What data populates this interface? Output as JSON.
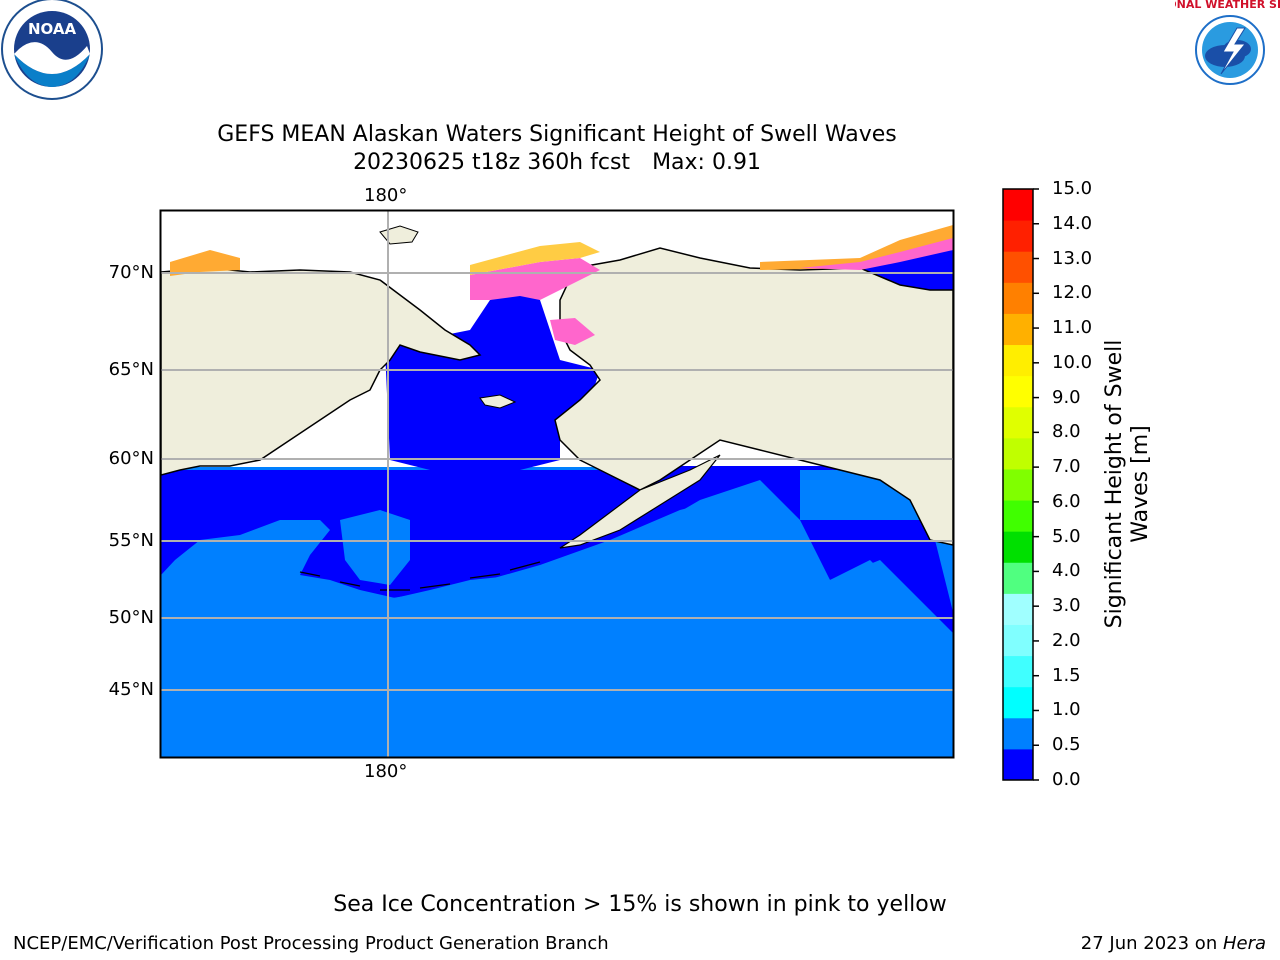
{
  "title": {
    "line1": "GEFS MEAN Alaskan Waters Significant Height of Swell Waves",
    "date_run": "20230625 t18z 360h fcst",
    "max": "Max: 0.91"
  },
  "map": {
    "lon_label_top": "180°",
    "lon_label_bottom": "180°",
    "lat_labels": [
      "70°N",
      "65°N",
      "60°N",
      "55°N",
      "50°N",
      "45°N"
    ],
    "colors": {
      "land": "#efeedc",
      "swell_low": "#0000ff",
      "swell_mid": "#0080ff",
      "ice_pink": "#ff66cc",
      "ice_yellow": "#ffcc44",
      "ice_orange": "#ffaa33",
      "grid": "#b0b0b0"
    }
  },
  "colorbar": {
    "title": "Significant Height of Swell Waves [m]",
    "ticks": [
      "15.0",
      "14.0",
      "13.0",
      "12.0",
      "11.0",
      "10.0",
      "9.0",
      "8.0",
      "7.0",
      "6.0",
      "5.0",
      "4.0",
      "3.0",
      "2.0",
      "1.5",
      "1.0",
      "0.5",
      "0.0"
    ],
    "colors": [
      "#0000ff",
      "#0080ff",
      "#00ffff",
      "#40ffff",
      "#80ffff",
      "#a0ffff",
      "#50ff80",
      "#00e000",
      "#40ff00",
      "#80ff00",
      "#c0ff00",
      "#e0ff00",
      "#ffff00",
      "#ffee00",
      "#ffb000",
      "#ff8000",
      "#ff5000",
      "#ff2000",
      "#ff0000"
    ]
  },
  "footnote": "Sea Ice Concentration > 15% is shown in pink to yellow",
  "footer": {
    "left": "NCEP/EMC/Verification Post Processing Product Generation Branch",
    "date": "27 Jun 2023 on ",
    "host": "Hera"
  },
  "logos": {
    "noaa_text": "NOAA",
    "nws_text": "NATIONAL WEATHER SERVICE"
  }
}
